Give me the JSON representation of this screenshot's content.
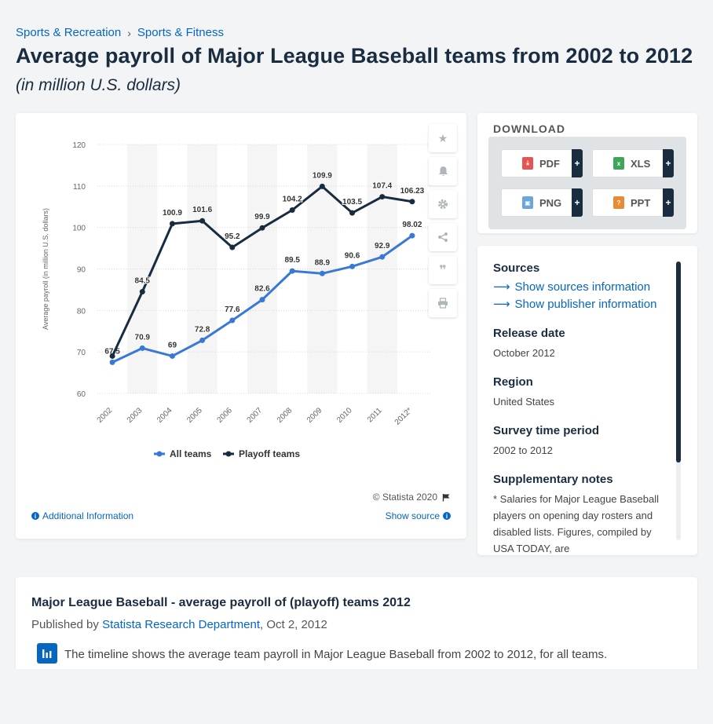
{
  "breadcrumb": {
    "items": [
      "Sports & Recreation",
      "Sports & Fitness"
    ],
    "separator": "›"
  },
  "title": "Average payroll of Major League Baseball teams from 2002 to 2012",
  "subtitle": "(in million U.S. dollars)",
  "toolbar": {
    "icons": [
      "star-icon",
      "bell-icon",
      "gear-icon",
      "share-icon",
      "quote-icon",
      "print-icon"
    ]
  },
  "chart_footer": {
    "copyright": "© Statista 2020",
    "additional_info": "Additional Information",
    "show_source": "Show source"
  },
  "download": {
    "title": "DOWNLOAD",
    "buttons": [
      {
        "label": "PDF",
        "color": "#e55353"
      },
      {
        "label": "XLS",
        "color": "#3ea55a"
      },
      {
        "label": "PNG",
        "color": "#6aa7d8"
      },
      {
        "label": "PPT",
        "color": "#e88b33"
      }
    ],
    "plus": "+"
  },
  "info": {
    "sources_h": "Sources",
    "show_sources": "Show sources information",
    "show_publisher": "Show publisher information",
    "release_h": "Release date",
    "release_v": "October 2012",
    "region_h": "Region",
    "region_v": "United States",
    "survey_h": "Survey time period",
    "survey_v": "2002 to 2012",
    "notes_h": "Supplementary notes",
    "notes_v": "* Salaries for Major League Baseball players on opening day rosters and disabled lists. Figures, compiled by USA TODAY, are"
  },
  "description": {
    "title": "Major League Baseball - average payroll of (playoff) teams 2012",
    "published_prefix": "Published by ",
    "publisher": "Statista Research Department",
    "date": ", Oct 2, 2012",
    "text": "The timeline shows the average team payroll in Major League Baseball from 2002 to 2012, for all teams."
  },
  "chart_data": {
    "type": "line",
    "categories": [
      "2002",
      "2003",
      "2004",
      "2005",
      "2006",
      "2007",
      "2008",
      "2009",
      "2010",
      "2011",
      "2012*"
    ],
    "series": [
      {
        "name": "All teams",
        "color": "#3a78d6",
        "values": [
          67.5,
          70.9,
          69,
          72.8,
          77.6,
          82.6,
          89.5,
          88.9,
          90.6,
          92.9,
          98.02
        ]
      },
      {
        "name": "Playoff teams",
        "color": "#182c40",
        "values": [
          69,
          84.5,
          100.9,
          101.6,
          95.2,
          99.9,
          104.2,
          109.9,
          103.5,
          107.4,
          106.23
        ]
      }
    ],
    "data_labels": {
      "All teams": [
        "67.5",
        "70.9",
        "69",
        "72.8",
        "77.6",
        "82.6",
        "89.5",
        "88.9",
        "90.6",
        "92.9",
        "98.02"
      ],
      "Playoff teams": [
        "",
        "84.5",
        "100.9",
        "101.6",
        "95.2",
        "99.9",
        "104.2",
        "109.9",
        "103.5",
        "107.4",
        "106.23"
      ]
    },
    "yticks": [
      "60",
      "70",
      "80",
      "90",
      "100",
      "110",
      "120"
    ],
    "ylim": [
      60,
      120
    ],
    "ylabel": "Average payroll (in million U.S. dollars)",
    "xlabel": "",
    "grid": true,
    "legend": "bottom"
  }
}
